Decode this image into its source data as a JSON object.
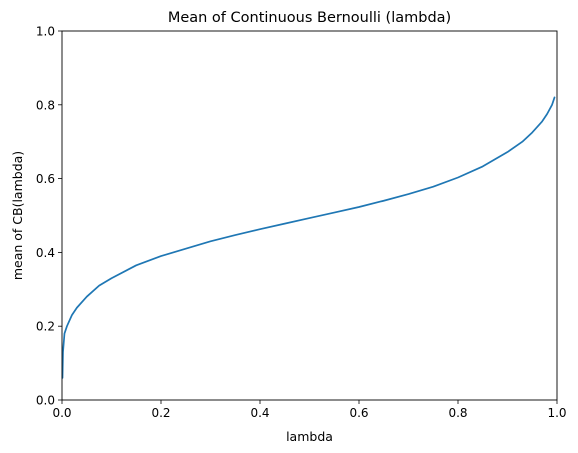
{
  "chart_data": {
    "type": "line",
    "title": "Mean of Continuous Bernoulli (lambda)",
    "xlabel": "lambda",
    "ylabel": "mean of CB(lambda)",
    "xlim": [
      0,
      1
    ],
    "ylim": [
      0,
      1
    ],
    "xticks": [
      "0.0",
      "0.2",
      "0.4",
      "0.6",
      "0.8",
      "1.0"
    ],
    "yticks": [
      "0.0",
      "0.2",
      "0.4",
      "0.6",
      "0.8",
      "1.0"
    ],
    "grid": false,
    "series": [
      {
        "color": "#1f77b4",
        "x": [
          0.001,
          0.002,
          0.005,
          0.01,
          0.02,
          0.03,
          0.05,
          0.075,
          0.1,
          0.15,
          0.2,
          0.25,
          0.3,
          0.35,
          0.4,
          0.45,
          0.5,
          0.55,
          0.6,
          0.65,
          0.7,
          0.75,
          0.8,
          0.85,
          0.9,
          0.93,
          0.95,
          0.97,
          0.98,
          0.99,
          0.995
        ],
        "y": [
          0.06,
          0.13,
          0.18,
          0.2,
          0.23,
          0.25,
          0.28,
          0.31,
          0.33,
          0.365,
          0.39,
          0.41,
          0.43,
          0.447,
          0.463,
          0.478,
          0.493,
          0.508,
          0.523,
          0.54,
          0.558,
          0.578,
          0.603,
          0.633,
          0.672,
          0.7,
          0.725,
          0.755,
          0.775,
          0.8,
          0.82
        ]
      }
    ]
  }
}
